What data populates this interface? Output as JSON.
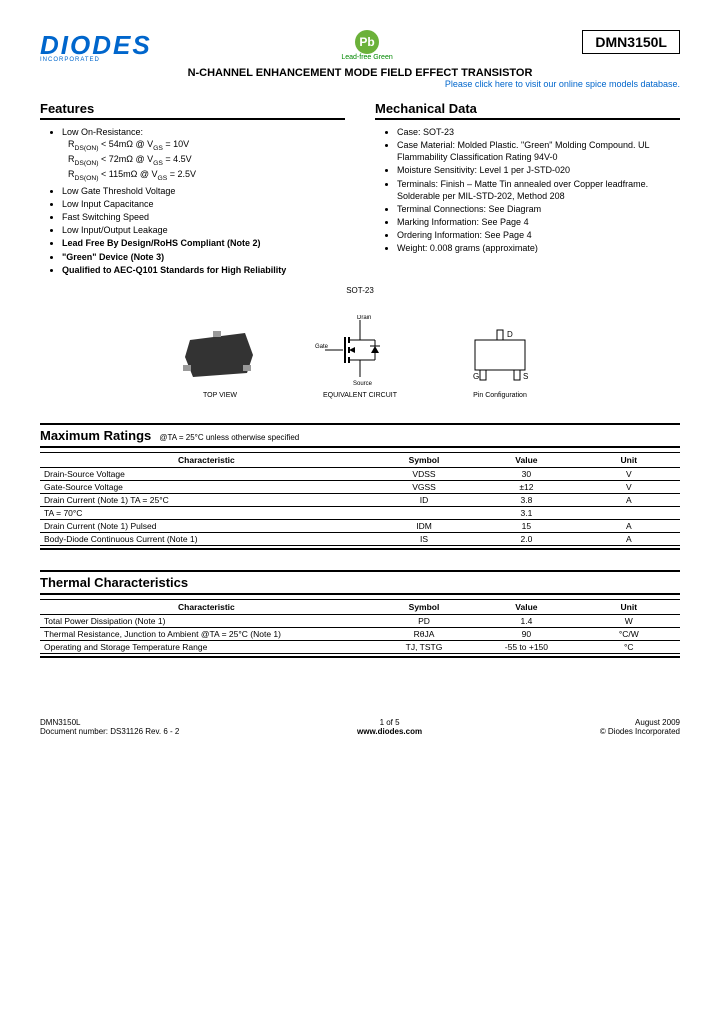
{
  "header": {
    "logo_text": "DIODES",
    "logo_sub": "INCORPORATED",
    "pb_label": "Lead-free Green",
    "part_number": "DMN3150L",
    "title": "N-CHANNEL ENHANCEMENT MODE FIELD EFFECT TRANSISTOR",
    "spice_link": "Please click here to visit our online spice models database."
  },
  "features": {
    "heading": "Features",
    "items": [
      "Low On-Resistance:",
      "Low Gate Threshold Voltage",
      "Low Input Capacitance",
      "Fast Switching Speed",
      "Low Input/Output Leakage",
      "Lead Free By Design/RoHS Compliant (Note 2)",
      "\"Green\" Device (Note 3)",
      "Qualified to AEC-Q101 Standards for High Reliability"
    ],
    "rds_lines": [
      "RDS(ON) < 54mΩ @ VGS = 10V",
      "RDS(ON) < 72mΩ @ VGS = 4.5V",
      "RDS(ON) < 115mΩ @ VGS = 2.5V"
    ],
    "bold_indices": [
      5,
      6,
      7
    ]
  },
  "mechanical": {
    "heading": "Mechanical Data",
    "items": [
      "Case: SOT-23",
      "Case Material: Molded Plastic. \"Green\" Molding Compound. UL Flammability Classification Rating 94V-0",
      "Moisture Sensitivity: Level 1 per J-STD-020",
      "Terminals: Finish – Matte Tin annealed over Copper leadframe. Solderable per MIL-STD-202, Method 208",
      "Terminal Connections: See Diagram",
      "Marking Information: See Page 4",
      "Ordering Information: See Page 4",
      "Weight: 0.008 grams (approximate)"
    ]
  },
  "diagrams": {
    "package_label": "SOT-23",
    "top_view": "TOP VIEW",
    "equiv": "EQUIVALENT CIRCUIT",
    "pin_config": "Pin Configuration",
    "pins": {
      "d": "D",
      "g": "G",
      "s": "S"
    },
    "circuit_labels": {
      "drain": "Drain",
      "gate": "Gate",
      "source": "Source"
    }
  },
  "max_ratings": {
    "heading": "Maximum Ratings",
    "condition": "@TA = 25°C unless otherwise specified",
    "columns": [
      "Characteristic",
      "Symbol",
      "Value",
      "Unit"
    ],
    "rows": [
      {
        "char": "Drain-Source Voltage",
        "sym": "VDSS",
        "val": "30",
        "unit": "V"
      },
      {
        "char": "Gate-Source Voltage",
        "sym": "VGSS",
        "val": "±12",
        "unit": "V"
      },
      {
        "char": "Drain Current (Note 1)                                    TA = 25°C",
        "sym": "ID",
        "val": "3.8",
        "unit": "A"
      },
      {
        "char": "                                                                                  TA = 70°C",
        "sym": "",
        "val": "3.1",
        "unit": ""
      },
      {
        "char": "Drain Current (Note 1)                                    Pulsed",
        "sym": "IDM",
        "val": "15",
        "unit": "A"
      },
      {
        "char": "Body-Diode Continuous Current (Note 1)",
        "sym": "IS",
        "val": "2.0",
        "unit": "A"
      }
    ]
  },
  "thermal": {
    "heading": "Thermal Characteristics",
    "columns": [
      "Characteristic",
      "Symbol",
      "Value",
      "Unit"
    ],
    "rows": [
      {
        "char": "Total Power Dissipation (Note 1)",
        "sym": "PD",
        "val": "1.4",
        "unit": "W"
      },
      {
        "char": "Thermal Resistance, Junction to Ambient  @TA = 25°C (Note 1)",
        "sym": "RθJA",
        "val": "90",
        "unit": "°C/W"
      },
      {
        "char": "Operating and Storage Temperature Range",
        "sym": "TJ, TSTG",
        "val": "-55 to +150",
        "unit": "°C"
      }
    ]
  },
  "footer": {
    "part": "DMN3150L",
    "doc": "Document number: DS31126 Rev. 6 - 2",
    "page": "1 of 5",
    "url": "www.diodes.com",
    "date": "August 2009",
    "copyright": "© Diodes Incorporated"
  },
  "colors": {
    "logo": "#0066cc",
    "pb": "#6bb13a",
    "link": "#0066cc"
  }
}
